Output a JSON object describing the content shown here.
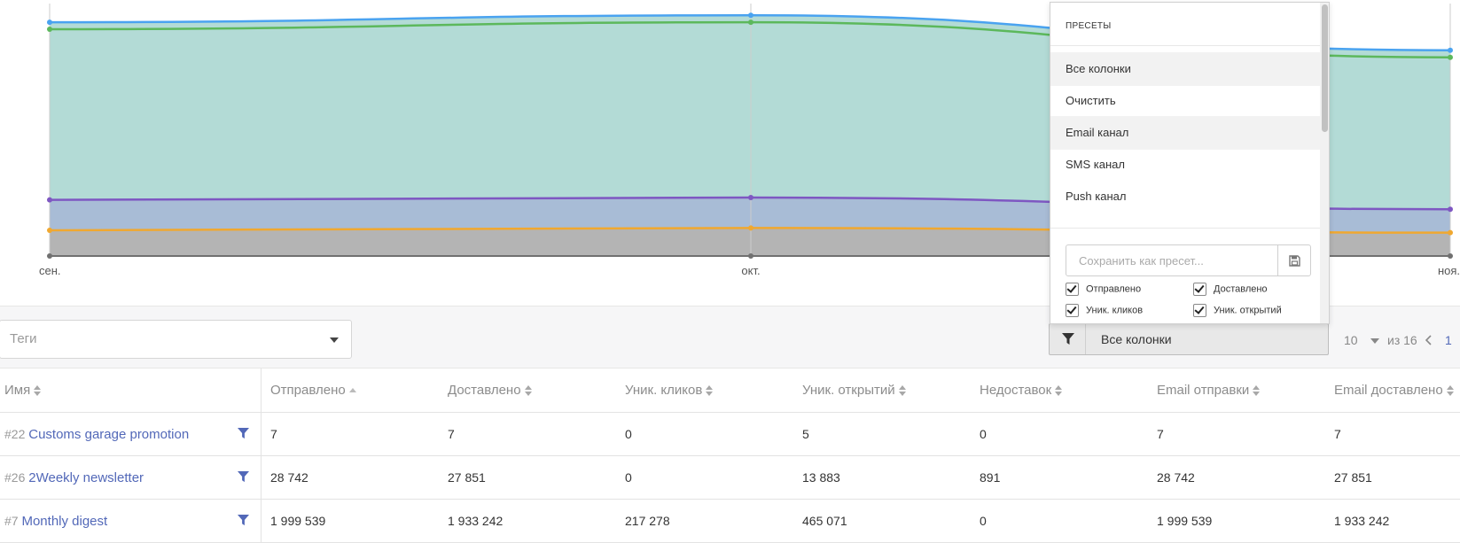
{
  "chart_data": {
    "type": "area",
    "x": [
      "сен.",
      "окт.",
      "ноя."
    ],
    "series": [
      {
        "values": [
          100,
          103,
          88
        ],
        "color": "#4aa3f0"
      },
      {
        "values": [
          97,
          100,
          85
        ],
        "color": "#5cb85c"
      },
      {
        "values": [
          24,
          25,
          20
        ],
        "color": "#7e57c2"
      },
      {
        "values": [
          11,
          12,
          10
        ],
        "color": "#f0a830"
      },
      {
        "values": [
          0,
          0,
          0
        ],
        "color": "#707070"
      }
    ],
    "fills": {
      "top": "#b3dbd6",
      "middle": "#a8bcd6",
      "bottom": "#b4b4b4"
    },
    "ylim": [
      0,
      108
    ],
    "grid": "vertical"
  },
  "filters": {
    "tags_placeholder": "Теги",
    "columns_label": "Все колонки",
    "per_page": "10",
    "total": "из 16",
    "page": "1"
  },
  "presets": {
    "title": "ПРЕСЕТЫ",
    "items": [
      {
        "label": "Все колонки",
        "active": true
      },
      {
        "label": "Очистить",
        "active": false
      },
      {
        "label": "Email канал",
        "active": true
      },
      {
        "label": "SMS канал",
        "active": false
      },
      {
        "label": "Push канал",
        "active": false
      }
    ],
    "save_placeholder": "Сохранить как пресет...",
    "checkboxes": [
      "Отправлено",
      "Доставлено",
      "Уник. кликов",
      "Уник. открытий"
    ]
  },
  "table": {
    "headers": [
      "Имя",
      "Отправлено",
      "Доставлено",
      "Уник. кликов",
      "Уник. открытий",
      "Недоставок",
      "Email отправки",
      "Email доставлено"
    ],
    "rows": [
      {
        "id": "#22",
        "name": "Customs garage promotion",
        "cells": [
          "7",
          "7",
          "0",
          "5",
          "0",
          "7",
          "7"
        ]
      },
      {
        "id": "#26",
        "name": "2Weekly newsletter",
        "cells": [
          "28 742",
          "27 851",
          "0",
          "13 883",
          "891",
          "28 742",
          "27 851"
        ]
      },
      {
        "id": "#7",
        "name": "Monthly digest",
        "cells": [
          "1 999 539",
          "1 933 242",
          "217 278",
          "465 071",
          "0",
          "1 999 539",
          "1 933 242"
        ]
      }
    ]
  }
}
